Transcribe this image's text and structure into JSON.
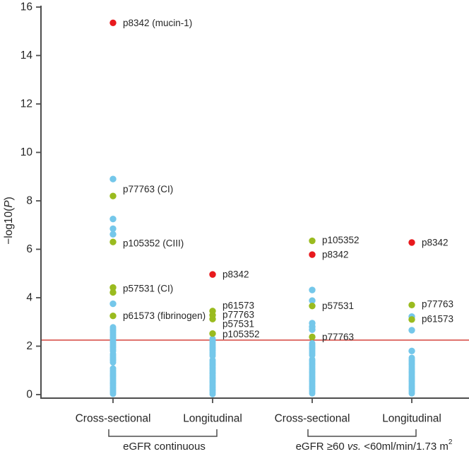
{
  "chart_data": {
    "type": "scatter",
    "title": "",
    "ylabel": "−log10(P)",
    "ylabel_parts": {
      "pre": "−log10(",
      "italic": "P",
      "post": ")"
    },
    "ylim": [
      0,
      16
    ],
    "yticks": [
      0,
      2,
      4,
      6,
      8,
      10,
      12,
      14,
      16
    ],
    "grid": false,
    "legend": "none",
    "threshold_line": {
      "value": 2.25,
      "color": "#d0342c"
    },
    "colors": {
      "blue_point": "#74c7ea",
      "green_point": "#9abb1f",
      "red_point": "#e8191d",
      "axis": "#4d4d4d",
      "text": "#262626"
    },
    "groups": [
      {
        "tick_label": "Cross-sectional",
        "points": [
          {
            "v": 15.35,
            "color": "red",
            "label": "p8342 (mucin-1)",
            "label_v": 15.35
          },
          {
            "v": 8.9,
            "color": "blue"
          },
          {
            "v": 8.2,
            "color": "green",
            "label": "p77763 (CI)",
            "label_v": 8.48
          },
          {
            "v": 7.25,
            "color": "blue"
          },
          {
            "v": 6.85,
            "color": "blue"
          },
          {
            "v": 6.62,
            "color": "blue"
          },
          {
            "v": 6.3,
            "color": "green",
            "label": "p105352 (CIII)",
            "label_v": 6.25
          },
          {
            "v": 4.42,
            "color": "green",
            "label": "p57531 (CI)",
            "label_v": 4.38
          },
          {
            "v": 4.22,
            "color": "green"
          },
          {
            "v": 3.75,
            "color": "blue"
          },
          {
            "v": 3.25,
            "color": "green",
            "label": "p61573 (fibrinogen)",
            "label_v": 3.25
          }
        ],
        "stack": [
          2.78,
          2.71,
          2.64,
          2.57,
          2.5,
          2.43,
          2.36,
          2.29,
          2.22,
          2.15,
          2.08,
          2.01,
          1.94,
          1.87,
          1.8,
          1.68,
          1.61,
          1.54,
          1.47,
          1.4,
          1.33,
          1.08,
          1.01,
          0.94,
          0.87,
          0.8,
          0.73,
          0.66,
          0.59,
          0.52,
          0.45,
          0.38,
          0.31,
          0.24,
          0.17,
          0.1,
          0.03
        ]
      },
      {
        "tick_label": "Longitudinal",
        "points": [
          {
            "v": 4.96,
            "color": "red",
            "label": "p8342",
            "label_v": 4.96
          },
          {
            "v": 3.45,
            "color": "green",
            "label": "p61573",
            "label_v": 3.68
          },
          {
            "v": 3.28,
            "color": "green",
            "label": "p77763",
            "label_v": 3.3
          },
          {
            "v": 3.12,
            "color": "green",
            "label": "p57531",
            "label_v": 2.92
          },
          {
            "v": 2.52,
            "color": "green",
            "label": "p105352",
            "label_v": 2.5
          }
        ],
        "stack": [
          2.3,
          2.23,
          2.16,
          2.09,
          2.02,
          1.95,
          1.88,
          1.81,
          1.74,
          1.67,
          1.6,
          1.42,
          1.35,
          1.28,
          1.21,
          1.14,
          1.07,
          1.0,
          0.93,
          0.86,
          0.79,
          0.72,
          0.65,
          0.58,
          0.51,
          0.44,
          0.37,
          0.3,
          0.23,
          0.16,
          0.09,
          0.02
        ]
      },
      {
        "tick_label": "Cross-sectional",
        "points": [
          {
            "v": 6.35,
            "color": "green",
            "label": "p105352",
            "label_v": 6.38
          },
          {
            "v": 5.78,
            "color": "red",
            "label": "p8342",
            "label_v": 5.78
          },
          {
            "v": 4.32,
            "color": "blue"
          },
          {
            "v": 3.88,
            "color": "blue"
          },
          {
            "v": 3.66,
            "color": "green",
            "label": "p57531",
            "label_v": 3.66
          },
          {
            "v": 2.95,
            "color": "blue"
          },
          {
            "v": 2.8,
            "color": "blue"
          },
          {
            "v": 2.68,
            "color": "blue"
          },
          {
            "v": 2.38,
            "color": "green",
            "label": "p77763",
            "label_v": 2.38
          }
        ],
        "stack": [
          2.12,
          2.05,
          1.98,
          1.91,
          1.84,
          1.77,
          1.7,
          1.63,
          1.45,
          1.38,
          1.31,
          1.24,
          1.17,
          1.1,
          1.03,
          0.96,
          0.89,
          0.82,
          0.75,
          0.68,
          0.61,
          0.54,
          0.47,
          0.4,
          0.33,
          0.26,
          0.19,
          0.12,
          0.05
        ]
      },
      {
        "tick_label": "Longitudinal",
        "points": [
          {
            "v": 6.28,
            "color": "red",
            "label": "p8342",
            "label_v": 6.28
          },
          {
            "v": 3.7,
            "color": "green",
            "label": "p77763",
            "label_v": 3.74
          },
          {
            "v": 3.22,
            "color": "blue"
          },
          {
            "v": 3.1,
            "color": "green",
            "label": "p61573",
            "label_v": 3.12
          },
          {
            "v": 2.66,
            "color": "blue"
          },
          {
            "v": 1.8,
            "color": "blue"
          }
        ],
        "stack": [
          1.52,
          1.45,
          1.38,
          1.31,
          1.24,
          1.17,
          1.1,
          1.03,
          0.96,
          0.89,
          0.82,
          0.75,
          0.68,
          0.61,
          0.54,
          0.47,
          0.4,
          0.33,
          0.26,
          0.19,
          0.12,
          0.05
        ]
      }
    ],
    "brackets": [
      {
        "from": 0,
        "to": 1,
        "label_parts": {
          "pre": "eGFR continuous"
        }
      },
      {
        "from": 2,
        "to": 3,
        "label_parts": {
          "pre": "eGFR ≥60 ",
          "italic": "vs.",
          "post": " <60ml/min/1.73 m",
          "sup": "2"
        }
      }
    ]
  }
}
